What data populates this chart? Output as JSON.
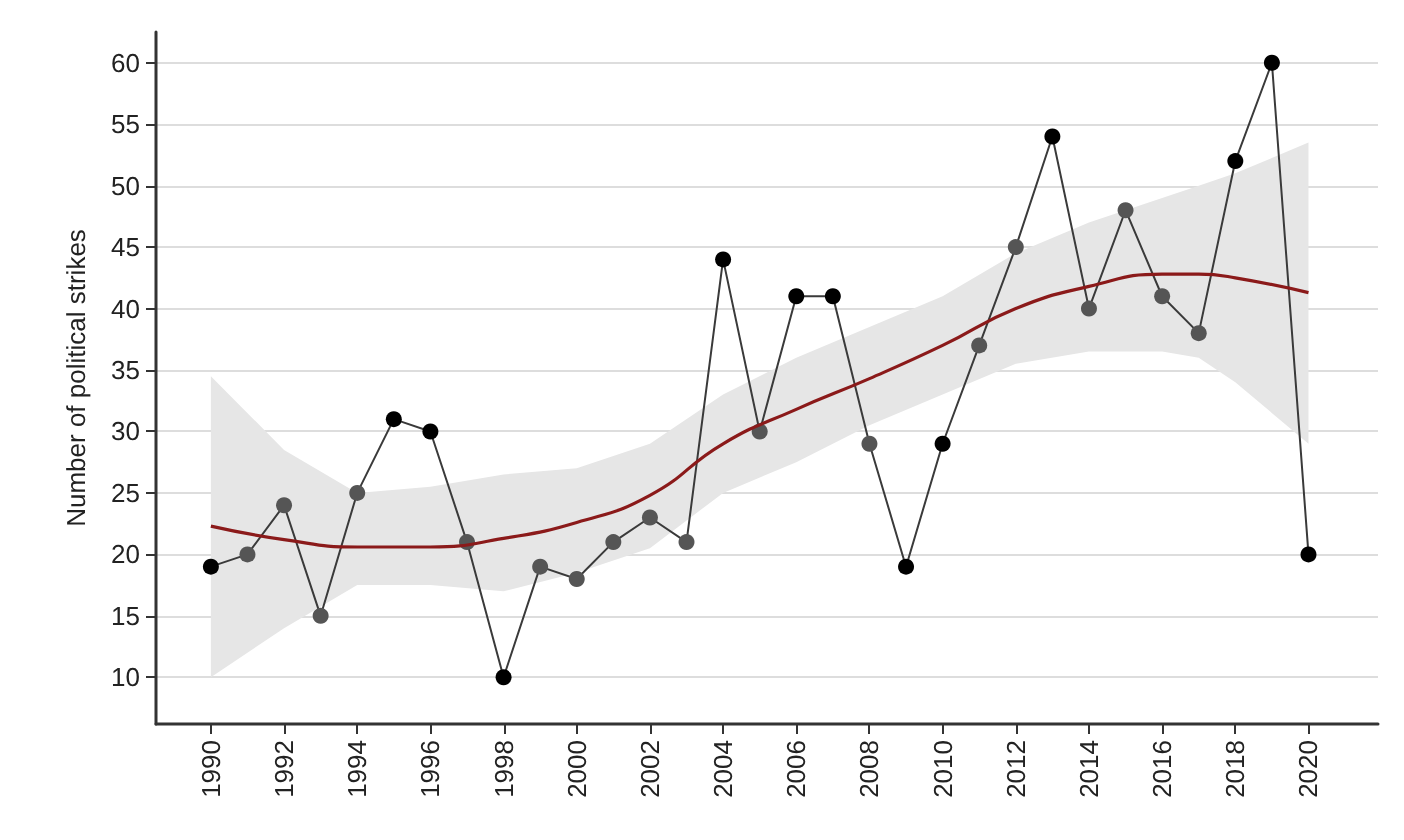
{
  "chart_data": {
    "type": "line",
    "ylabel": "Number of political strikes",
    "x": [
      1990,
      1991,
      1992,
      1993,
      1994,
      1995,
      1996,
      1997,
      1998,
      1999,
      2000,
      2001,
      2002,
      2003,
      2004,
      2005,
      2006,
      2007,
      2008,
      2009,
      2010,
      2011,
      2012,
      2013,
      2014,
      2015,
      2016,
      2017,
      2018,
      2019,
      2020
    ],
    "series": [
      {
        "color": "#3a3a3a",
        "marker": "circle",
        "values": [
          19,
          20,
          24,
          15,
          25,
          31,
          30,
          21,
          10,
          19,
          18,
          21,
          23,
          21,
          44,
          30,
          41,
          41,
          29,
          19,
          29,
          37,
          45,
          54,
          40,
          48,
          41,
          38,
          52,
          60,
          20
        ],
        "colors": [
          "#000000",
          "#555555",
          "#555555",
          "#555555",
          "#555555",
          "#000000",
          "#000000",
          "#555555",
          "#000000",
          "#555555",
          "#555555",
          "#555555",
          "#555555",
          "#555555",
          "#000000",
          "#555555",
          "#000000",
          "#000000",
          "#555555",
          "#000000",
          "#000000",
          "#555555",
          "#555555",
          "#000000",
          "#555555",
          "#555555",
          "#555555",
          "#555555",
          "#000000",
          "#000000",
          "#000000"
        ]
      },
      {
        "color": "#8b1a1a",
        "marker": "none",
        "x": [
          1990,
          1992,
          1994,
          1996,
          1998,
          2000,
          2002,
          2004,
          2006,
          2008,
          2010,
          2012,
          2014,
          2016,
          2017,
          2018,
          2020
        ],
        "values": [
          22.3,
          21.2,
          20.6,
          20.6,
          21.3,
          22.6,
          24.8,
          29,
          31.8,
          34.3,
          37,
          40,
          41.8,
          42.8,
          42.8,
          42.5,
          41.3
        ],
        "lower": [
          10,
          14,
          17.5,
          17.5,
          17,
          18.5,
          20.5,
          25,
          27.5,
          30.5,
          33,
          35.5,
          36.5,
          36.5,
          36,
          34,
          29
        ],
        "upper": [
          34.5,
          28.5,
          25,
          25.5,
          26.5,
          27,
          29,
          33,
          36,
          38.5,
          41,
          44.5,
          47,
          49,
          50,
          51,
          53.5
        ]
      }
    ],
    "xlim": [
      1988.5,
      2021.9
    ],
    "xticks": [
      1990,
      1992,
      1994,
      1996,
      1998,
      2000,
      2002,
      2004,
      2006,
      2008,
      2010,
      2012,
      2014,
      2016,
      2018,
      2020
    ],
    "ylim": [
      6.2,
      62.5
    ],
    "yticks": [
      10,
      15,
      20,
      25,
      30,
      35,
      40,
      45,
      50,
      55,
      60
    ],
    "grid": "y"
  }
}
